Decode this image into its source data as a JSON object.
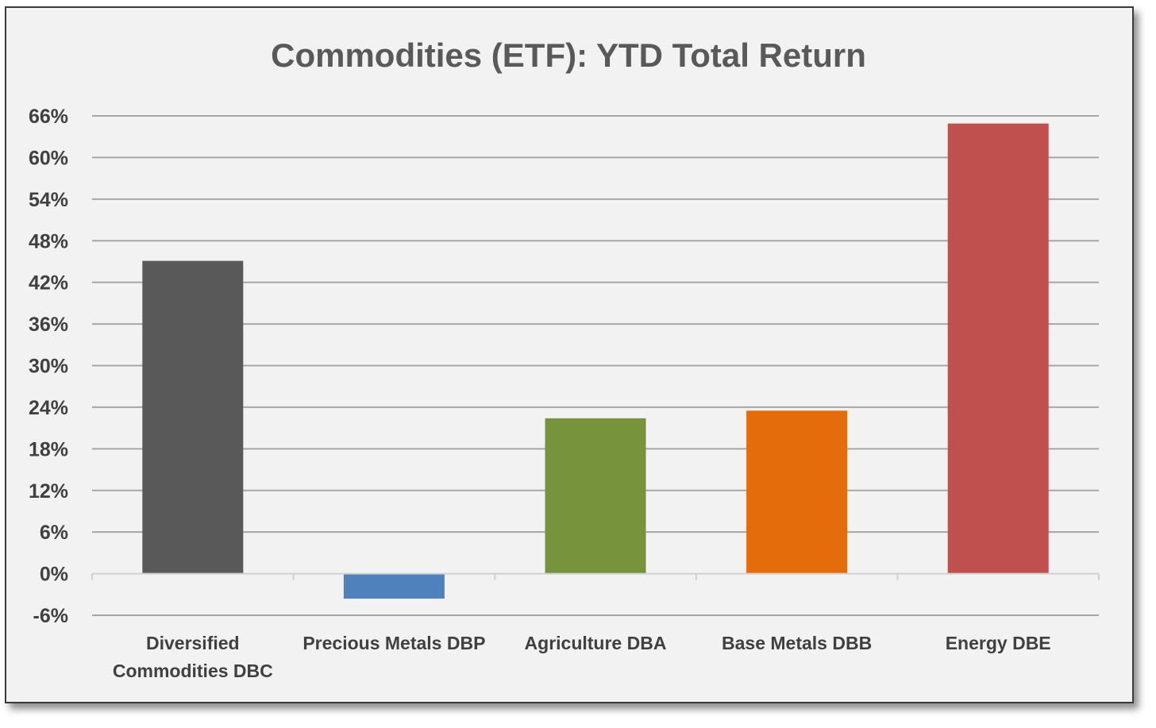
{
  "chart_data": {
    "type": "bar",
    "title": "Commodities (ETF): YTD Total Return",
    "xlabel": "",
    "ylabel": "",
    "categories": [
      [
        "Diversified",
        "Commodities DBC"
      ],
      [
        "Precious Metals DBP"
      ],
      [
        "Agriculture DBA"
      ],
      [
        "Base Metals DBB"
      ],
      [
        "Energy DBE"
      ]
    ],
    "values": [
      45.1,
      -3.6,
      22.4,
      23.5,
      64.9
    ],
    "colors": [
      "#595959",
      "#4f81bd",
      "#77933c",
      "#e46c0a",
      "#c0504d"
    ],
    "ylim": [
      -6,
      66
    ],
    "yticks": [
      -6,
      0,
      6,
      12,
      18,
      24,
      30,
      36,
      42,
      48,
      54,
      60,
      66
    ],
    "ytick_labels": [
      "-6%",
      "0%",
      "6%",
      "12%",
      "18%",
      "24%",
      "30%",
      "36%",
      "42%",
      "48%",
      "54%",
      "60%",
      "66%"
    ],
    "grid": true,
    "legend": "none"
  }
}
